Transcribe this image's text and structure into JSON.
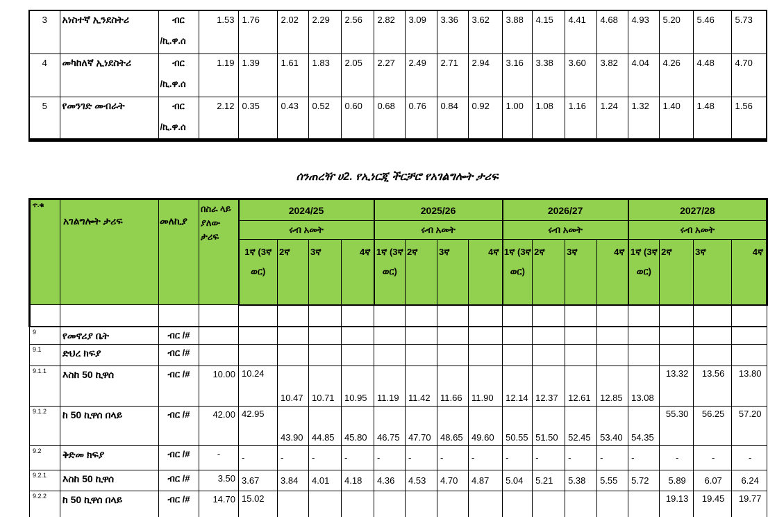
{
  "colors": {
    "header_green": "#92D050",
    "border": "#000000",
    "background": "#ffffff"
  },
  "title": "ሰንጠረዥ ሀ2. የኢነርጂ ችርቻሮ የአገልግሎት ታሪፍ",
  "table1": {
    "rows": [
      {
        "no": "3",
        "name": "አነስተኛ ኢንደስትሪ",
        "unit_line1": "ብር",
        "unit_line2": "/ኪ.ዋ.ሰ",
        "current": "1.53",
        "quarters": [
          "1.76",
          "2.02",
          "2.29",
          "2.56",
          "2.82",
          "3.09",
          "3.36",
          "3.62",
          "3.88",
          "4.15",
          "4.41",
          "4.68",
          "4.93",
          "5.20",
          "5.46",
          "5.73"
        ]
      },
      {
        "no": "4",
        "name": "መካከለኛ ኢነደስትሪ",
        "unit_line1": "ብር",
        "unit_line2": "/ኪ.ዋ.ሰ",
        "current": "1.19",
        "quarters": [
          "1.39",
          "1.61",
          "1.83",
          "2.05",
          "2.27",
          "2.49",
          "2.71",
          "2.94",
          "3.16",
          "3.38",
          "3.60",
          "3.82",
          "4.04",
          "4.26",
          "4.48",
          "4.70"
        ]
      },
      {
        "no": "5",
        "name": "የመንገድ መብራት",
        "unit_line1": "ብር",
        "unit_line2": "/ኪ.ዋ.ሰ",
        "current": "2.12",
        "quarters": [
          "0.35",
          "0.43",
          "0.52",
          "0.60",
          "0.68",
          "0.76",
          "0.84",
          "0.92",
          "1.00",
          "1.08",
          "1.16",
          "1.24",
          "1.32",
          "1.40",
          "1.48",
          "1.56"
        ]
      }
    ]
  },
  "table2": {
    "header": {
      "no": "ተ.ቁ",
      "service": "አገልግሎት ታሪፍ",
      "unit": "መለኪያ",
      "current": "በስራ ላይ ያለው ታሪፍ",
      "years": [
        "2024/25",
        "2025/26",
        "2026/27",
        "2027/28"
      ],
      "quarter_title": "ሩብ አመት",
      "quarter_labels": [
        "1ኛ (3ኛ ወር)",
        "2ኛ",
        "3ኛ",
        "4ኛ"
      ]
    },
    "rows": [
      {
        "no": "9",
        "name": "የመኖሪያ ቤት",
        "unit": "ብር /#",
        "current": "",
        "tall": false,
        "quarters": [
          "",
          "",
          "",
          "",
          "",
          "",
          "",
          "",
          "",
          "",
          "",
          "",
          "",
          "",
          "",
          ""
        ]
      },
      {
        "no": "9.1",
        "name": "ድህረ ክፍያ",
        "unit": "ብር /#",
        "current": "",
        "tall": false,
        "quarters": [
          "",
          "",
          "",
          "",
          "",
          "",
          "",
          "",
          "",
          "",
          "",
          "",
          "",
          "",
          "",
          ""
        ]
      },
      {
        "no": "9.1.1",
        "name": "እስከ 50 ኪዋሰ",
        "unit": "ብር /#",
        "current": "10.00",
        "tall": true,
        "quarters": [
          "10.24",
          "10.47",
          "10.71",
          "10.95",
          "11.19",
          "11.42",
          "11.66",
          "11.90",
          "12.14",
          "12.37",
          "12.61",
          "12.85",
          "13.08",
          "13.32",
          "13.56",
          "13.80"
        ]
      },
      {
        "no": "9.1.2",
        "name": "ከ 50 ኪዋሰ በላይ",
        "unit": "ብር /#",
        "current": "42.00",
        "tall": true,
        "quarters": [
          "42.95",
          "43.90",
          "44.85",
          "45.80",
          "46.75",
          "47.70",
          "48.65",
          "49.60",
          "50.55",
          "51.50",
          "52.45",
          "53.40",
          "54.35",
          "55.30",
          "56.25",
          "57.20"
        ]
      },
      {
        "no": "9.2",
        "name": "ቅድመ ክፍያ",
        "unit": "ብር /#",
        "current": "-",
        "tall": false,
        "quarters": [
          "-",
          "-",
          "-",
          "-",
          "-",
          "-",
          "-",
          "-",
          "-",
          "-",
          "-",
          "-",
          "-",
          "-",
          "-",
          "-"
        ]
      },
      {
        "no": "9.2.1",
        "name": "እስከ 50 ኪዋሰ",
        "unit": "ብር /#",
        "current": "3.50",
        "tall": false,
        "quarters": [
          "3.67",
          "3.84",
          "4.01",
          "4.18",
          "4.36",
          "4.53",
          "4.70",
          "4.87",
          "5.04",
          "5.21",
          "5.38",
          "5.55",
          "5.72",
          "5.89",
          "6.07",
          "6.24"
        ]
      },
      {
        "no": "9.2.2",
        "name": "ከ 50 ኪዋሰ በላይ",
        "unit": "ብር /#",
        "current": "14.70",
        "tall": true,
        "quarters": [
          "15.02",
          "",
          "",
          "",
          "",
          "",
          "",
          "",
          "",
          "",
          "",
          "",
          "",
          "19.13",
          "19.45",
          "19.77"
        ]
      }
    ]
  }
}
